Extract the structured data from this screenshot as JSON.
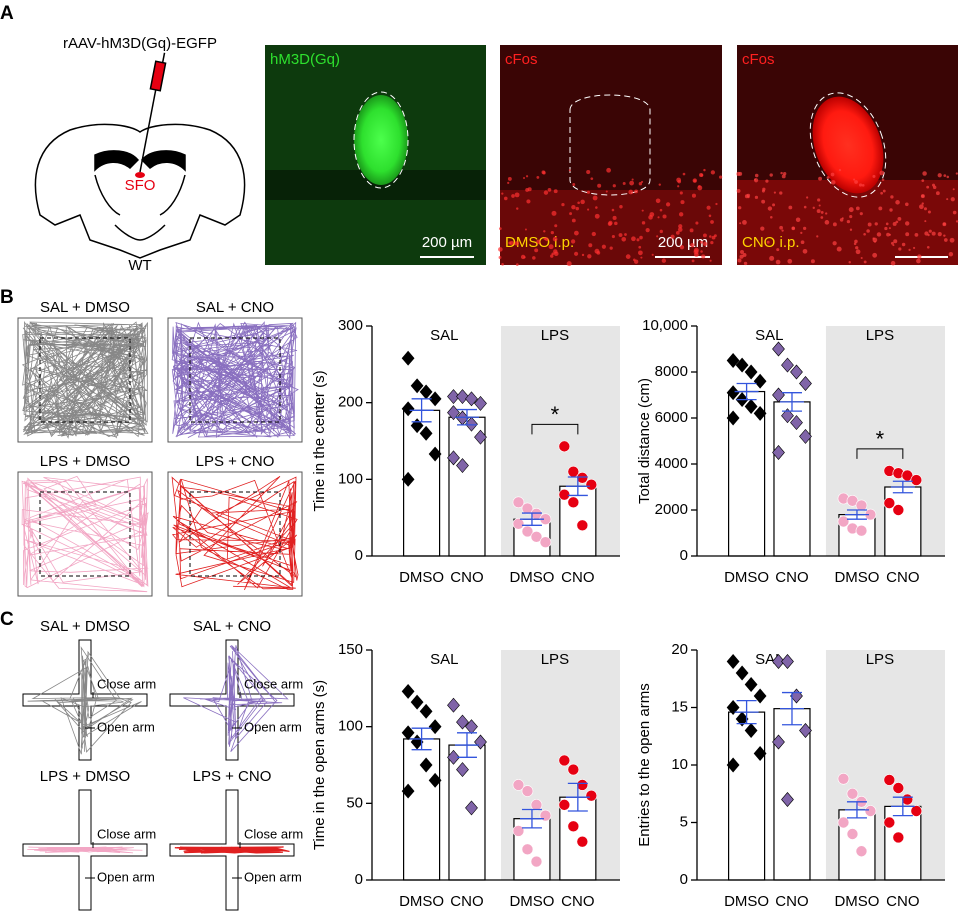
{
  "figure": {
    "panel_labels": [
      "A",
      "B",
      "C"
    ],
    "injection": "rAAV-hM3D(Gq)-EGFP",
    "region": "SFO",
    "genotype": "WT",
    "images": [
      {
        "label": "hM3D(Gq)",
        "scale": "200 µm"
      },
      {
        "label": "cFos",
        "treatment": "DMSO i.p.",
        "scale": "200 µm"
      },
      {
        "label": "cFos",
        "treatment": "CNO i.p."
      }
    ],
    "open_field": [
      "SAL + DMSO",
      "SAL + CNO",
      "LPS + DMSO",
      "LPS + CNO"
    ],
    "maze": {
      "groups": [
        "SAL + DMSO",
        "SAL + CNO",
        "LPS + DMSO",
        "LPS + CNO"
      ],
      "close_arm": "Close arm",
      "open_arm": "Open arm"
    }
  },
  "chart_data": [
    {
      "type": "bar",
      "ylabel": "Time in the center (s)",
      "groups": [
        "SAL",
        "LPS"
      ],
      "categories": [
        "DMSO",
        "CNO",
        "DMSO",
        "CNO"
      ],
      "values": [
        190,
        181,
        48,
        91
      ],
      "errors": [
        15,
        10,
        8,
        12
      ],
      "points": [
        [
          258,
          222,
          214,
          205,
          192,
          170,
          160,
          133,
          100
        ],
        [
          208,
          208,
          205,
          199,
          187,
          180,
          172,
          155,
          128,
          118
        ],
        [
          70,
          62,
          55,
          48,
          42,
          32,
          25,
          18
        ],
        [
          143,
          110,
          102,
          93,
          80,
          70,
          40
        ]
      ],
      "colors": [
        "#000000",
        "#8064a8",
        "#f2a6c4",
        "#e60012"
      ],
      "markers": [
        "diamond",
        "diamond",
        "circle",
        "circle"
      ],
      "annotation": "*",
      "ylim": [
        0,
        300
      ],
      "yticks": [
        0,
        100,
        200,
        300
      ]
    },
    {
      "type": "bar",
      "ylabel": "Total distance (cm)",
      "groups": [
        "SAL",
        "LPS"
      ],
      "categories": [
        "DMSO",
        "CNO",
        "DMSO",
        "CNO"
      ],
      "values": [
        7150,
        6700,
        1800,
        3000
      ],
      "errors": [
        350,
        400,
        200,
        250
      ],
      "points": [
        [
          8500,
          8300,
          8000,
          7600,
          7100,
          6800,
          6500,
          6200,
          6000
        ],
        [
          9000,
          8300,
          8000,
          7500,
          7000,
          6100,
          5800,
          5200,
          4500
        ],
        [
          2500,
          2400,
          2200,
          1800,
          1500,
          1200,
          1100
        ],
        [
          3700,
          3600,
          3500,
          3300,
          2300,
          2000
        ]
      ],
      "colors": [
        "#000000",
        "#8064a8",
        "#f2a6c4",
        "#e60012"
      ],
      "markers": [
        "diamond",
        "diamond",
        "circle",
        "circle"
      ],
      "annotation": "*",
      "ylim": [
        0,
        10000
      ],
      "yticks": [
        0,
        2000,
        4000,
        6000,
        8000,
        {
          "value": 10000,
          "label": "10,000"
        }
      ]
    },
    {
      "type": "bar",
      "ylabel": "Time in the open arms (s)",
      "groups": [
        "SAL",
        "LPS"
      ],
      "categories": [
        "DMSO",
        "CNO",
        "DMSO",
        "CNO"
      ],
      "values": [
        92,
        88,
        40,
        54
      ],
      "errors": [
        7,
        8,
        6,
        9
      ],
      "points": [
        [
          123,
          116,
          110,
          100,
          96,
          90,
          75,
          65,
          58
        ],
        [
          114,
          103,
          100,
          90,
          80,
          72,
          47
        ],
        [
          62,
          58,
          49,
          42,
          32,
          20,
          12
        ],
        [
          78,
          72,
          62,
          55,
          49,
          35,
          25
        ]
      ],
      "colors": [
        "#000000",
        "#8064a8",
        "#f2a6c4",
        "#e60012"
      ],
      "markers": [
        "diamond",
        "diamond",
        "circle",
        "circle"
      ],
      "ylim": [
        0,
        150
      ],
      "yticks": [
        0,
        50,
        100,
        150
      ]
    },
    {
      "type": "bar",
      "ylabel": "Entries to the open arms",
      "groups": [
        "SAL",
        "LPS"
      ],
      "categories": [
        "DMSO",
        "CNO",
        "DMSO",
        "CNO"
      ],
      "values": [
        14.6,
        14.9,
        6.1,
        6.4
      ],
      "errors": [
        1,
        1.4,
        0.7,
        0.8
      ],
      "points": [
        [
          19,
          18,
          17,
          16,
          15,
          14,
          13,
          11,
          10
        ],
        [
          19,
          19,
          16,
          13,
          12,
          7
        ],
        [
          8.8,
          7.5,
          6.8,
          6,
          5,
          4,
          2.5
        ],
        [
          8.7,
          8,
          7,
          6,
          5,
          3.7
        ]
      ],
      "colors": [
        "#000000",
        "#8064a8",
        "#f2a6c4",
        "#e60012"
      ],
      "markers": [
        "diamond",
        "diamond",
        "circle",
        "circle"
      ],
      "ylim": [
        0,
        20
      ],
      "yticks": [
        0,
        5,
        10,
        15,
        20
      ]
    }
  ]
}
